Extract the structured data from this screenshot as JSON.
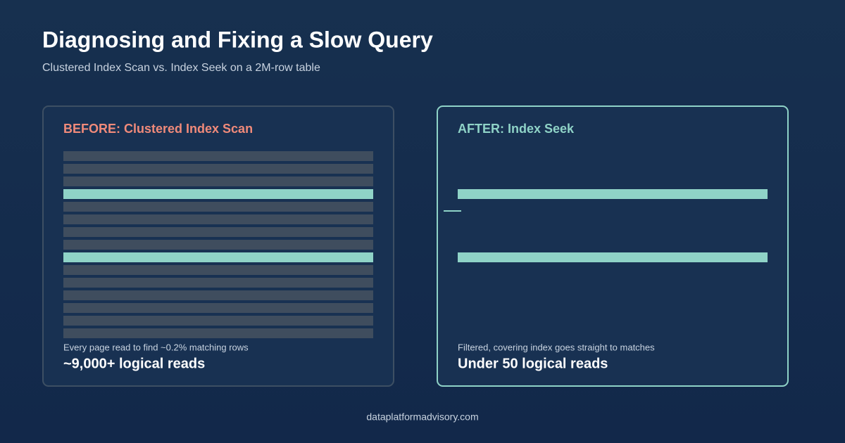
{
  "header": {
    "title": "Diagnosing and Fixing a Slow Query",
    "subtitle": "Clustered Index Scan vs. Index Seek on a 2M-row table"
  },
  "panels": [
    {
      "title": "BEFORE: Clustered Index Scan",
      "caption": "Every page read to find ~0.2% matching rows",
      "stat": "~9,000+ logical reads"
    },
    {
      "title": "AFTER: Index Seek",
      "caption": "Filtered, covering index goes straight to matches",
      "stat": "Under 50 logical reads"
    }
  ],
  "footer": "dataplatformadvisory.com"
}
